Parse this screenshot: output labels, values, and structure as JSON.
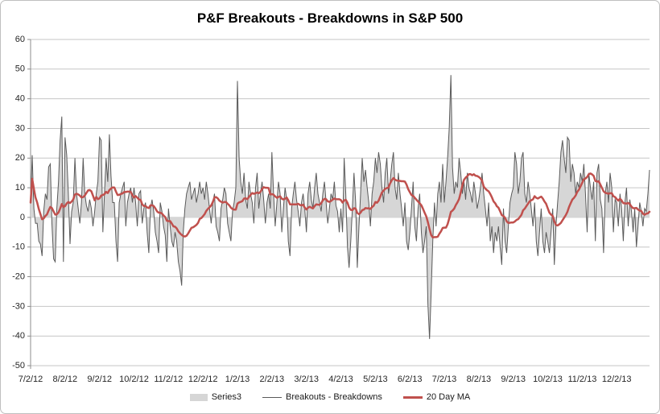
{
  "chart": {
    "title": "P&F Breakouts - Breakdowns in S&P 500"
  },
  "colors": {
    "background": "#FFFFFF",
    "border": "#BFBFBF",
    "gridline": "#C6C6C6",
    "axis_line": "#8C8C8C",
    "tick_text": "#262626",
    "area_fill": "#D6D6D6",
    "series_line": "#5A5A5A",
    "ma_line": "#C0504D"
  },
  "chart_data": {
    "type": "area",
    "title": "P&F Breakouts - Breakdowns in S&P 500",
    "xlabel": "",
    "ylabel": "",
    "ylim": [
      -50,
      60
    ],
    "yticks": [
      60,
      50,
      40,
      30,
      20,
      10,
      0,
      -10,
      -20,
      -30,
      -40,
      -50
    ],
    "grid": "horizontal-only",
    "legend_position": "bottom",
    "x_tick_labels": [
      "7/2/12",
      "8/2/12",
      "9/2/12",
      "10/2/12",
      "11/2/12",
      "12/2/12",
      "1/2/13",
      "2/2/13",
      "3/2/13",
      "4/2/13",
      "5/2/13",
      "6/2/13",
      "7/2/13",
      "8/2/13",
      "9/2/13",
      "10/2/13",
      "11/2/13",
      "12/2/13"
    ],
    "points_per_tick": 21,
    "legend": [
      {
        "label": "Series3",
        "swatch": "area"
      },
      {
        "label": "Breakouts - Breakdowns",
        "swatch": "line"
      },
      {
        "label": "20 Day MA",
        "swatch": "thick-line"
      }
    ],
    "series": [
      {
        "name": "Series3",
        "render": "gray filled area of daily breakouts-minus-breakdowns values",
        "values": [
          5,
          21,
          3,
          -2,
          -2,
          -8,
          -9,
          -13,
          2,
          8,
          6,
          17,
          18,
          -2,
          -14,
          -15,
          3,
          12,
          26,
          34,
          -15,
          27,
          21,
          8,
          -9,
          2,
          5,
          20,
          8,
          3,
          -2,
          5,
          20,
          8,
          4,
          2,
          6,
          3,
          -3,
          2,
          8,
          12,
          27,
          26,
          -5,
          8,
          20,
          12,
          28,
          14,
          5,
          5,
          -8,
          -15,
          5,
          8,
          10,
          12,
          -3,
          5,
          8,
          10,
          5,
          10,
          5,
          -3,
          8,
          9,
          -2,
          3,
          5,
          -5,
          -12,
          3,
          6,
          2,
          -5,
          -8,
          -12,
          5,
          2,
          -3,
          -6,
          -15,
          3,
          -3,
          -8,
          -10,
          -5,
          -8,
          -15,
          -18,
          -23,
          -5,
          3,
          8,
          10,
          12,
          6,
          8,
          10,
          5,
          8,
          12,
          8,
          10,
          6,
          12,
          8,
          3,
          -2,
          5,
          8,
          -3,
          -5,
          -8,
          3,
          6,
          10,
          8,
          -2,
          -5,
          -8,
          2,
          5,
          10,
          46,
          20,
          12,
          8,
          15,
          6,
          3,
          12,
          8,
          5,
          -2,
          10,
          15,
          3,
          8,
          12,
          6,
          -2,
          5,
          8,
          3,
          22,
          8,
          -3,
          5,
          12,
          8,
          -5,
          3,
          10,
          6,
          -8,
          -13,
          3,
          8,
          12,
          6,
          2,
          -3,
          5,
          8,
          3,
          -5,
          8,
          12,
          6,
          3,
          10,
          15,
          8,
          5,
          2,
          8,
          12,
          5,
          -2,
          3,
          8,
          6,
          12,
          4,
          2,
          -5,
          3,
          -5,
          20,
          8,
          -10,
          -17,
          -8,
          3,
          15,
          5,
          -17,
          -3,
          8,
          20,
          12,
          16,
          10,
          5,
          -3,
          8,
          12,
          20,
          15,
          22,
          18,
          10,
          5,
          15,
          20,
          8,
          12,
          18,
          22,
          10,
          6,
          15,
          8,
          3,
          -3,
          5,
          -8,
          -11,
          -5,
          3,
          12,
          -3,
          -8,
          3,
          8,
          -5,
          -12,
          -8,
          -3,
          -29,
          -41,
          -25,
          -8,
          5,
          -3,
          8,
          12,
          5,
          18,
          5,
          12,
          20,
          30,
          48,
          17,
          8,
          12,
          10,
          20,
          15,
          8,
          12,
          6,
          15,
          10,
          8,
          5,
          12,
          8,
          3,
          6,
          10,
          15,
          8,
          3,
          -3,
          5,
          -8,
          -3,
          -12,
          -5,
          -8,
          -3,
          -10,
          -16,
          3,
          -8,
          -12,
          -3,
          5,
          8,
          10,
          22,
          18,
          8,
          12,
          20,
          22,
          8,
          5,
          12,
          8,
          3,
          -3,
          5,
          -8,
          -13,
          -5,
          3,
          -8,
          -12,
          -5,
          -8,
          -12,
          -5,
          3,
          -16,
          -3,
          5,
          12,
          22,
          26,
          20,
          15,
          27,
          26,
          12,
          18,
          15,
          8,
          12,
          10,
          15,
          12,
          18,
          8,
          -5,
          15,
          10,
          6,
          12,
          -8,
          15,
          18,
          6,
          3,
          -12,
          8,
          12,
          5,
          15,
          10,
          -5,
          6,
          5,
          -3,
          8,
          3,
          -8,
          5,
          10,
          -3,
          6,
          2,
          -5,
          3,
          -10,
          -3,
          5,
          2,
          -3,
          3,
          2,
          8,
          16
        ]
      },
      {
        "name": "Breakouts - Breakdowns",
        "render": "thin dark gray line over the same values as Series3",
        "values_ref": 0
      },
      {
        "name": "20 Day MA",
        "render": "thick red line, 20-day trailing moving average of Series3",
        "derived_from": 0,
        "window": 20
      }
    ]
  }
}
